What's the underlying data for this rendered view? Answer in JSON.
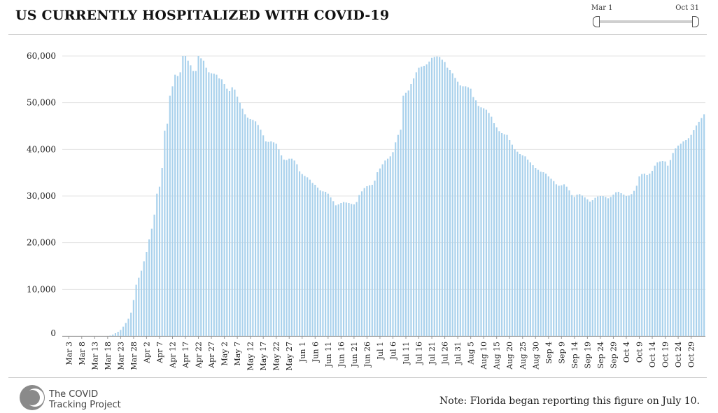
{
  "header": {
    "title": "US CURRENTLY HOSPITALIZED WITH COVID-19"
  },
  "range_slider": {
    "start_label": "Mar 1",
    "end_label": "Oct 31"
  },
  "footer": {
    "logo_text_line1": "The COVID",
    "logo_text_line2": "Tracking Project",
    "note": "Note: Florida began reporting this figure on July 10."
  },
  "colors": {
    "bar": "#a9d1ec",
    "grid": "#e3e3e3",
    "axis_text": "#222222",
    "logo": "#8a8a8a"
  },
  "chart_data": {
    "type": "bar",
    "title": "US CURRENTLY HOSPITALIZED WITH COVID-19",
    "xlabel": "",
    "ylabel": "",
    "ylim": [
      0,
      60000
    ],
    "grid": true,
    "yticks": [
      "0",
      "10,000",
      "20,000",
      "30,000",
      "40,000",
      "50,000",
      "60,000"
    ],
    "xtick_labels": [
      "Mar 3",
      "Mar 8",
      "Mar 13",
      "Mar 18",
      "Mar 23",
      "Mar 28",
      "Apr 2",
      "Apr 7",
      "Apr 12",
      "Apr 17",
      "Apr 22",
      "Apr 27",
      "May 2",
      "May 7",
      "May 12",
      "May 17",
      "May 22",
      "May 27",
      "Jun 1",
      "Jun 6",
      "Jun 11",
      "Jun 16",
      "Jun 21",
      "Jun 26",
      "Jul 1",
      "Jul 6",
      "Jul 11",
      "Jul 16",
      "Jul 21",
      "Jul 26",
      "Jul 31",
      "Aug 5",
      "Aug 10",
      "Aug 15",
      "Aug 20",
      "Aug 25",
      "Aug 30",
      "Sep 4",
      "Sep 9",
      "Sep 14",
      "Sep 19",
      "Sep 24",
      "Sep 29",
      "Oct 4",
      "Oct 9",
      "Oct 14",
      "Oct 19",
      "Oct 24",
      "Oct 29"
    ],
    "first_date": "Mar 1",
    "last_date": "Oct 31",
    "values": [
      0,
      0,
      0,
      0,
      0,
      0,
      0,
      0,
      0,
      0,
      0,
      0,
      0,
      0,
      0,
      0,
      0,
      0,
      100,
      300,
      600,
      900,
      1300,
      2000,
      2800,
      3700,
      5000,
      7700,
      11000,
      12500,
      14000,
      16000,
      18000,
      20700,
      23000,
      26000,
      30500,
      32000,
      36000,
      44000,
      45500,
      51500,
      53500,
      56000,
      55700,
      56500,
      60000,
      60000,
      59000,
      58000,
      56800,
      56800,
      60000,
      59500,
      59000,
      57500,
      56500,
      56300,
      56200,
      56000,
      55200,
      55000,
      54000,
      53000,
      52500,
      53300,
      52800,
      51300,
      50000,
      48700,
      47500,
      46800,
      46500,
      46300,
      46000,
      45200,
      44200,
      43000,
      41700,
      41600,
      41700,
      41500,
      41200,
      40000,
      38700,
      37800,
      37700,
      38000,
      38000,
      37600,
      36800,
      35300,
      34700,
      34300,
      34000,
      33500,
      32800,
      32400,
      31800,
      31200,
      31000,
      30900,
      30500,
      29700,
      28900,
      28000,
      28200,
      28500,
      28700,
      28600,
      28500,
      28300,
      28200,
      28700,
      30200,
      31000,
      31700,
      32100,
      32300,
      32400,
      33300,
      35100,
      35900,
      36800,
      37600,
      38000,
      38500,
      39400,
      41500,
      43100,
      44200,
      51500,
      52100,
      52600,
      54000,
      55200,
      56500,
      57500,
      57700,
      57900,
      58200,
      58800,
      59600,
      59800,
      59900,
      59800,
      59200,
      58700,
      57500,
      57000,
      56300,
      55300,
      54500,
      53700,
      53500,
      53500,
      53300,
      53000,
      51200,
      50500,
      49300,
      49000,
      48800,
      48500,
      47800,
      47000,
      45600,
      44700,
      43900,
      43500,
      43200,
      43100,
      42000,
      41000,
      40000,
      39500,
      39000,
      38700,
      38500,
      37800,
      37200,
      36600,
      36000,
      35600,
      35200,
      35100,
      34800,
      34200,
      33700,
      33200,
      32500,
      32200,
      32300,
      32500,
      32000,
      31200,
      30200,
      29800,
      30300,
      30400,
      30100,
      29700,
      29300,
      28800,
      29100,
      29600,
      29900,
      30000,
      30000,
      29800,
      29500,
      29800,
      30300,
      30800,
      30900,
      30600,
      30300,
      30000,
      30100,
      30400,
      31100,
      32200,
      34200,
      34700,
      34800,
      34500,
      34800,
      35400,
      36500,
      37200,
      37400,
      37500,
      37400,
      36500,
      37700,
      39200,
      40200,
      40800,
      41200,
      41700,
      42000,
      42400,
      43100,
      44100,
      45100,
      45900,
      46700,
      47500
    ]
  }
}
